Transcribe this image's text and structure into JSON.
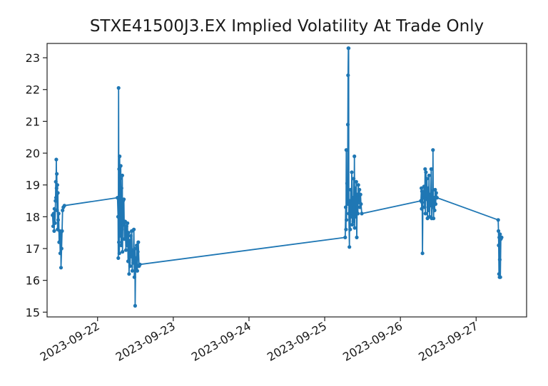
{
  "chart_data": {
    "type": "line",
    "title": "STXE41500J3.EX Implied Volatility At Trade Only",
    "xlabel": "",
    "ylabel": "",
    "x_axis": {
      "type": "datetime",
      "ticks": [
        "2023-09-22",
        "2023-09-23",
        "2023-09-24",
        "2023-09-25",
        "2023-09-26",
        "2023-09-27"
      ],
      "range": [
        "2023-09-21 08:00",
        "2023-09-27 16:00"
      ]
    },
    "y_axis": {
      "ticks": [
        15,
        16,
        17,
        18,
        19,
        20,
        21,
        22,
        23
      ],
      "ylim": [
        14.85,
        23.45
      ]
    },
    "grid": false,
    "legend": "none",
    "series": [
      {
        "color": "#1f77b4",
        "marker": "dot",
        "points": [
          [
            "2023-09-21 09:45",
            18.05
          ],
          [
            "2023-09-21 09:55",
            17.7
          ],
          [
            "2023-09-21 10:05",
            18.1
          ],
          [
            "2023-09-21 10:15",
            17.55
          ],
          [
            "2023-09-21 10:20",
            18.25
          ],
          [
            "2023-09-21 10:30",
            17.8
          ],
          [
            "2023-09-21 10:40",
            18.5
          ],
          [
            "2023-09-21 10:45",
            19.1
          ],
          [
            "2023-09-21 10:50",
            18.6
          ],
          [
            "2023-09-21 10:55",
            19.8
          ],
          [
            "2023-09-21 11:00",
            18.9
          ],
          [
            "2023-09-21 11:05",
            19.35
          ],
          [
            "2023-09-21 11:10",
            18.2
          ],
          [
            "2023-09-21 11:15",
            19.0
          ],
          [
            "2023-09-21 11:20",
            17.6
          ],
          [
            "2023-09-21 11:25",
            18.75
          ],
          [
            "2023-09-21 11:30",
            17.9
          ],
          [
            "2023-09-21 11:40",
            18.1
          ],
          [
            "2023-09-21 11:50",
            17.2
          ],
          [
            "2023-09-21 12:00",
            17.55
          ],
          [
            "2023-09-21 12:10",
            16.85
          ],
          [
            "2023-09-21 12:20",
            17.5
          ],
          [
            "2023-09-21 12:25",
            16.4
          ],
          [
            "2023-09-21 12:35",
            17.0
          ],
          [
            "2023-09-21 12:45",
            17.55
          ],
          [
            "2023-09-21 12:55",
            18.2
          ],
          [
            "2023-09-21 13:10",
            18.3
          ],
          [
            "2023-09-21 13:30",
            18.35
          ],
          [
            "2023-09-22 06:20",
            18.6
          ],
          [
            "2023-09-22 06:30",
            18.0
          ],
          [
            "2023-09-22 06:35",
            16.7
          ],
          [
            "2023-09-22 06:40",
            22.05
          ],
          [
            "2023-09-22 06:45",
            17.2
          ],
          [
            "2023-09-22 06:50",
            19.5
          ],
          [
            "2023-09-22 06:55",
            16.85
          ],
          [
            "2023-09-22 07:00",
            19.9
          ],
          [
            "2023-09-22 07:05",
            17.4
          ],
          [
            "2023-09-22 07:10",
            19.2
          ],
          [
            "2023-09-22 07:15",
            18.3
          ],
          [
            "2023-09-22 07:20",
            19.6
          ],
          [
            "2023-09-22 07:30",
            17.1
          ],
          [
            "2023-09-22 07:35",
            18.9
          ],
          [
            "2023-09-22 07:40",
            17.6
          ],
          [
            "2023-09-22 07:50",
            19.3
          ],
          [
            "2023-09-22 07:55",
            16.9
          ],
          [
            "2023-09-22 08:05",
            18.5
          ],
          [
            "2023-09-22 08:15",
            17.75
          ],
          [
            "2023-09-22 08:20",
            18.55
          ],
          [
            "2023-09-22 08:30",
            17.3
          ],
          [
            "2023-09-22 08:45",
            17.85
          ],
          [
            "2023-09-22 09:00",
            16.95
          ],
          [
            "2023-09-22 09:10",
            17.7
          ],
          [
            "2023-09-22 09:20",
            17.1
          ],
          [
            "2023-09-22 09:30",
            17.8
          ],
          [
            "2023-09-22 09:40",
            16.6
          ],
          [
            "2023-09-22 09:50",
            17.5
          ],
          [
            "2023-09-22 10:00",
            16.2
          ],
          [
            "2023-09-22 10:10",
            17.25
          ],
          [
            "2023-09-22 10:20",
            16.45
          ],
          [
            "2023-09-22 10:30",
            17.4
          ],
          [
            "2023-09-22 10:40",
            16.75
          ],
          [
            "2023-09-22 10:50",
            17.55
          ],
          [
            "2023-09-22 11:00",
            16.3
          ],
          [
            "2023-09-22 11:10",
            16.95
          ],
          [
            "2023-09-22 11:20",
            16.55
          ],
          [
            "2023-09-22 11:30",
            17.6
          ],
          [
            "2023-09-22 11:40",
            16.1
          ],
          [
            "2023-09-22 11:50",
            17.0
          ],
          [
            "2023-09-22 11:55",
            15.2
          ],
          [
            "2023-09-22 12:05",
            16.7
          ],
          [
            "2023-09-22 12:15",
            16.4
          ],
          [
            "2023-09-22 12:25",
            17.1
          ],
          [
            "2023-09-22 12:35",
            16.3
          ],
          [
            "2023-09-22 12:45",
            16.9
          ],
          [
            "2023-09-22 12:55",
            17.2
          ],
          [
            "2023-09-22 13:10",
            16.45
          ],
          [
            "2023-09-22 13:25",
            16.5
          ],
          [
            "2023-09-25 06:30",
            17.35
          ],
          [
            "2023-09-25 06:40",
            18.3
          ],
          [
            "2023-09-25 06:45",
            17.6
          ],
          [
            "2023-09-25 06:50",
            20.1
          ],
          [
            "2023-09-25 06:55",
            17.9
          ],
          [
            "2023-09-25 07:05",
            19.05
          ],
          [
            "2023-09-25 07:15",
            18.4
          ],
          [
            "2023-09-25 07:20",
            20.9
          ],
          [
            "2023-09-25 07:25",
            22.45
          ],
          [
            "2023-09-25 07:30",
            23.3
          ],
          [
            "2023-09-25 07:35",
            23.3
          ],
          [
            "2023-09-25 07:40",
            18.1
          ],
          [
            "2023-09-25 07:50",
            17.05
          ],
          [
            "2023-09-25 07:55",
            18.5
          ],
          [
            "2023-09-25 08:05",
            17.6
          ],
          [
            "2023-09-25 08:15",
            18.85
          ],
          [
            "2023-09-25 08:25",
            18.0
          ],
          [
            "2023-09-25 08:35",
            19.4
          ],
          [
            "2023-09-25 08:45",
            17.75
          ],
          [
            "2023-09-25 08:55",
            18.6
          ],
          [
            "2023-09-25 09:05",
            17.85
          ],
          [
            "2023-09-25 09:10",
            19.2
          ],
          [
            "2023-09-25 09:20",
            18.3
          ],
          [
            "2023-09-25 09:25",
            19.9
          ],
          [
            "2023-09-25 09:30",
            17.65
          ],
          [
            "2023-09-25 09:40",
            18.9
          ],
          [
            "2023-09-25 09:50",
            18.0
          ],
          [
            "2023-09-25 10:00",
            19.1
          ],
          [
            "2023-09-25 10:10",
            17.35
          ],
          [
            "2023-09-25 10:20",
            18.7
          ],
          [
            "2023-09-25 10:30",
            18.1
          ],
          [
            "2023-09-25 10:40",
            19.0
          ],
          [
            "2023-09-25 10:50",
            18.45
          ],
          [
            "2023-09-25 11:00",
            18.85
          ],
          [
            "2023-09-25 11:10",
            18.3
          ],
          [
            "2023-09-25 11:20",
            18.7
          ],
          [
            "2023-09-25 11:30",
            18.4
          ],
          [
            "2023-09-25 11:45",
            18.1
          ],
          [
            "2023-09-26 06:30",
            18.5
          ],
          [
            "2023-09-26 06:40",
            18.9
          ],
          [
            "2023-09-26 06:45",
            18.25
          ],
          [
            "2023-09-26 06:50",
            18.8
          ],
          [
            "2023-09-26 06:55",
            18.45
          ],
          [
            "2023-09-26 07:00",
            16.85
          ],
          [
            "2023-09-26 07:10",
            18.75
          ],
          [
            "2023-09-26 07:20",
            18.6
          ],
          [
            "2023-09-26 07:30",
            18.95
          ],
          [
            "2023-09-26 07:40",
            18.3
          ],
          [
            "2023-09-26 07:50",
            19.5
          ],
          [
            "2023-09-26 07:55",
            18.1
          ],
          [
            "2023-09-26 08:05",
            19.4
          ],
          [
            "2023-09-26 08:15",
            18.55
          ],
          [
            "2023-09-26 08:25",
            19.2
          ],
          [
            "2023-09-26 08:35",
            17.95
          ],
          [
            "2023-09-26 08:45",
            18.9
          ],
          [
            "2023-09-26 08:55",
            18.2
          ],
          [
            "2023-09-26 09:05",
            19.3
          ],
          [
            "2023-09-26 09:15",
            18.0
          ],
          [
            "2023-09-26 09:25",
            18.7
          ],
          [
            "2023-09-26 09:35",
            18.35
          ],
          [
            "2023-09-26 09:45",
            19.5
          ],
          [
            "2023-09-26 09:55",
            17.95
          ],
          [
            "2023-09-26 10:05",
            18.8
          ],
          [
            "2023-09-26 10:15",
            18.3
          ],
          [
            "2023-09-26 10:20",
            20.1
          ],
          [
            "2023-09-26 10:25",
            18.4
          ],
          [
            "2023-09-26 10:30",
            17.95
          ],
          [
            "2023-09-26 10:40",
            18.6
          ],
          [
            "2023-09-26 10:50",
            18.2
          ],
          [
            "2023-09-26 11:00",
            18.85
          ],
          [
            "2023-09-26 11:10",
            18.4
          ],
          [
            "2023-09-26 11:20",
            18.75
          ],
          [
            "2023-09-26 11:35",
            18.6
          ],
          [
            "2023-09-27 07:00",
            17.9
          ],
          [
            "2023-09-27 07:05",
            17.55
          ],
          [
            "2023-09-27 07:10",
            17.1
          ],
          [
            "2023-09-27 07:15",
            16.2
          ],
          [
            "2023-09-27 07:20",
            17.35
          ],
          [
            "2023-09-27 07:25",
            16.1
          ],
          [
            "2023-09-27 07:30",
            16.65
          ],
          [
            "2023-09-27 07:35",
            17.45
          ],
          [
            "2023-09-27 07:40",
            16.1
          ],
          [
            "2023-09-27 07:50",
            17.3
          ],
          [
            "2023-09-27 08:05",
            17.35
          ]
        ]
      }
    ]
  }
}
